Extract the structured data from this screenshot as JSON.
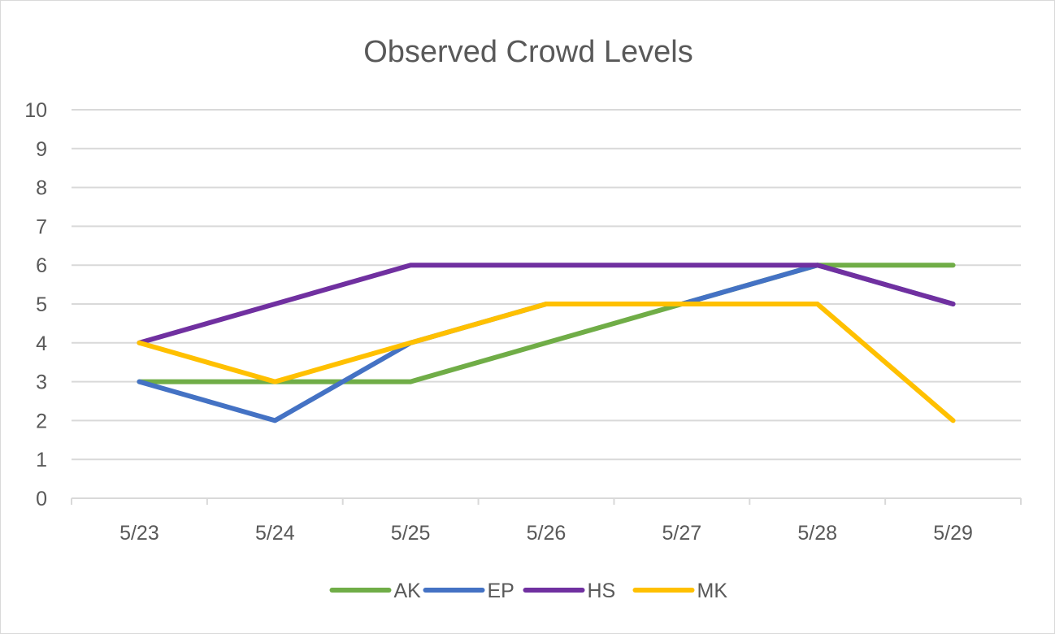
{
  "chart_data": {
    "type": "line",
    "title": "Observed Crowd Levels",
    "xlabel": "",
    "ylabel": "",
    "categories": [
      "5/23",
      "5/24",
      "5/25",
      "5/26",
      "5/27",
      "5/28",
      "5/29"
    ],
    "ylim": [
      0,
      10
    ],
    "yticks": [
      "0",
      "1",
      "2",
      "3",
      "4",
      "5",
      "6",
      "7",
      "8",
      "9",
      "10"
    ],
    "grid": true,
    "legend": "bottom",
    "series": [
      {
        "name": "AK",
        "color": "#70ad47",
        "values": [
          3,
          3,
          3,
          4,
          5,
          6,
          6
        ]
      },
      {
        "name": "EP",
        "color": "#4472c4",
        "values": [
          3,
          2,
          4,
          5,
          5,
          6,
          5
        ]
      },
      {
        "name": "HS",
        "color": "#7030a0",
        "values": [
          4,
          5,
          6,
          6,
          6,
          6,
          5
        ]
      },
      {
        "name": "MK",
        "color": "#ffc000",
        "values": [
          4,
          3,
          4,
          5,
          5,
          5,
          2
        ]
      }
    ]
  }
}
